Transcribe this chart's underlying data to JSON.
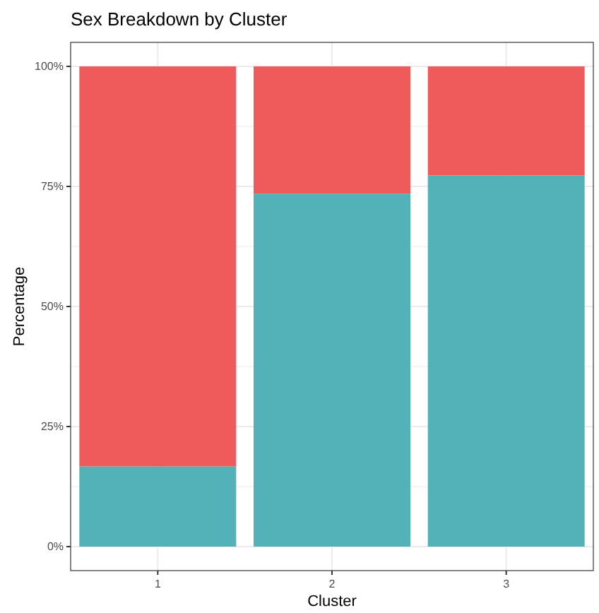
{
  "chart_data": {
    "type": "bar",
    "title": "Sex Breakdown by Cluster",
    "xlabel": "Cluster",
    "ylabel": "Percentage",
    "categories": [
      "1",
      "2",
      "3"
    ],
    "stacked": true,
    "series": [
      {
        "color": "#52b2b8",
        "values": [
          16.7,
          73.5,
          77.3
        ]
      },
      {
        "color": "#ef5b5b",
        "values": [
          83.3,
          26.5,
          22.7
        ]
      }
    ],
    "ylim": [
      -5,
      105
    ],
    "yticks": [
      {
        "value": 0,
        "label": "0%"
      },
      {
        "value": 25,
        "label": "25%"
      },
      {
        "value": 50,
        "label": "50%"
      },
      {
        "value": 75,
        "label": "75%"
      },
      {
        "value": 100,
        "label": "100%"
      }
    ],
    "grid": true
  }
}
